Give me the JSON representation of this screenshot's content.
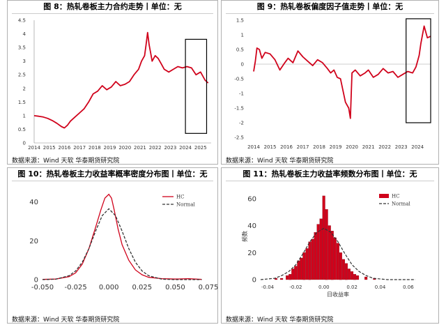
{
  "colors": {
    "series": "#d0021b",
    "normal": "#333333",
    "frame": "#000000"
  },
  "source": "数据来源：Wind 天软 华泰期货研究院",
  "chart_data": [
    {
      "type": "line",
      "title": "图 8：热轧卷板主力合约走势丨单位：无",
      "x_ticks": [
        "2014",
        "2015",
        "2016",
        "2017",
        "2018",
        "2019",
        "2020",
        "2021",
        "2022",
        "2023",
        "2024",
        "2025"
      ],
      "xlim": [
        2014,
        2025.7
      ],
      "ylim": [
        0,
        4.5
      ],
      "y_ticks": [
        0,
        0.5,
        1,
        1.5,
        2,
        2.5,
        3,
        3.5,
        4,
        4.5
      ],
      "x": [
        2014.0,
        2014.3,
        2014.6,
        2014.9,
        2015.2,
        2015.5,
        2015.8,
        2016.0,
        2016.2,
        2016.4,
        2016.7,
        2017.0,
        2017.3,
        2017.6,
        2017.9,
        2018.2,
        2018.5,
        2018.8,
        2019.1,
        2019.4,
        2019.7,
        2020.0,
        2020.3,
        2020.6,
        2020.9,
        2021.1,
        2021.3,
        2021.4,
        2021.5,
        2021.6,
        2021.7,
        2021.8,
        2022.0,
        2022.2,
        2022.4,
        2022.6,
        2022.9,
        2023.2,
        2023.5,
        2023.8,
        2024.1,
        2024.4,
        2024.7,
        2025.0,
        2025.3,
        2025.5
      ],
      "values": [
        1.0,
        0.98,
        0.95,
        0.9,
        0.82,
        0.72,
        0.6,
        0.55,
        0.65,
        0.8,
        0.95,
        1.1,
        1.25,
        1.5,
        1.8,
        1.9,
        2.1,
        1.95,
        2.05,
        2.25,
        2.1,
        2.15,
        2.25,
        2.5,
        2.7,
        3.0,
        3.2,
        3.6,
        4.05,
        3.6,
        3.3,
        3.0,
        3.2,
        3.1,
        2.9,
        2.7,
        2.6,
        2.7,
        2.8,
        2.75,
        2.8,
        2.75,
        2.5,
        2.6,
        2.3,
        2.2
      ],
      "box_x": [
        2024.0,
        2025.4
      ],
      "box_y": [
        0.35,
        3.8
      ]
    },
    {
      "type": "line",
      "title": "图 9：热轧卷板偏度因子值走势丨单位：无",
      "x_ticks": [
        "2014",
        "2015",
        "2016",
        "2017",
        "2018",
        "2019",
        "2020",
        "2021",
        "2022",
        "2023",
        "2024"
      ],
      "xlim": [
        2014,
        2024.8
      ],
      "ylim": [
        -2.5,
        1.5
      ],
      "y_ticks": [
        -2.5,
        -2,
        -1.5,
        -1,
        -0.5,
        0,
        0.5,
        1,
        1.5
      ],
      "x": [
        2014.0,
        2014.1,
        2014.2,
        2014.35,
        2014.5,
        2014.7,
        2015.0,
        2015.3,
        2015.6,
        2015.9,
        2016.1,
        2016.4,
        2016.7,
        2017.0,
        2017.3,
        2017.6,
        2017.9,
        2018.2,
        2018.5,
        2018.7,
        2018.9,
        2019.1,
        2019.3,
        2019.6,
        2019.8,
        2019.9,
        2020.0,
        2020.2,
        2020.5,
        2020.8,
        2021.0,
        2021.3,
        2021.6,
        2021.9,
        2022.2,
        2022.5,
        2022.8,
        2023.1,
        2023.4,
        2023.7,
        2023.9,
        2024.0,
        2024.1,
        2024.2,
        2024.4,
        2024.6,
        2024.8
      ],
      "values": [
        -0.25,
        0.1,
        0.55,
        0.5,
        0.2,
        0.4,
        0.35,
        0.15,
        -0.2,
        0.05,
        0.2,
        0.05,
        0.45,
        0.25,
        0.1,
        -0.05,
        0.15,
        0.05,
        -0.15,
        -0.3,
        -0.2,
        -0.45,
        -0.5,
        -1.3,
        -1.5,
        -1.85,
        -0.3,
        -0.2,
        -0.4,
        -0.3,
        -0.2,
        -0.45,
        -0.35,
        -0.15,
        -0.3,
        -0.25,
        -0.45,
        -0.35,
        -0.25,
        -0.3,
        -0.1,
        0.1,
        0.3,
        0.7,
        1.3,
        0.9,
        0.95
      ],
      "box_x": [
        2023.3,
        2024.8
      ],
      "box_y": [
        -2.0,
        1.55
      ]
    },
    {
      "type": "line",
      "title": "图 10：热轧卷板主力收益率概率密度分布图丨单位：无",
      "xlabel": "",
      "ylabel": "",
      "xlim": [
        -0.05,
        0.075
      ],
      "ylim": [
        0,
        46
      ],
      "x_ticks": [
        "-0.050",
        "-0.025",
        "0.000",
        "0.025",
        "0.050",
        "0.075"
      ],
      "x_tick_values": [
        -0.05,
        -0.025,
        0.0,
        0.025,
        0.05,
        0.075
      ],
      "y_ticks": [
        0,
        20,
        40
      ],
      "legend": [
        "HC",
        "Normal"
      ],
      "legend_position": "top-right",
      "series": [
        {
          "name": "HC",
          "x": [
            -0.05,
            -0.04,
            -0.03,
            -0.025,
            -0.02,
            -0.015,
            -0.01,
            -0.006,
            -0.003,
            0.0,
            0.002,
            0.004,
            0.007,
            0.01,
            0.015,
            0.02,
            0.025,
            0.03,
            0.04,
            0.05,
            0.06,
            0.07
          ],
          "values": [
            0.1,
            0.3,
            1.5,
            3.5,
            8,
            16,
            27,
            36,
            42,
            44,
            42,
            36,
            26,
            18,
            10,
            5,
            2.5,
            1.2,
            0.5,
            0.3,
            0.5,
            0.1
          ]
        },
        {
          "name": "Normal",
          "x": [
            -0.05,
            -0.04,
            -0.03,
            -0.025,
            -0.02,
            -0.015,
            -0.01,
            -0.005,
            0.0,
            0.005,
            0.01,
            0.015,
            0.02,
            0.025,
            0.03,
            0.04,
            0.05,
            0.06,
            0.07
          ],
          "values": [
            0,
            0.2,
            2,
            4.5,
            9,
            16,
            25,
            33,
            36.5,
            33,
            25,
            16,
            9,
            4.5,
            2,
            0.2,
            0,
            0,
            0
          ]
        }
      ]
    },
    {
      "type": "bar",
      "title": "图 11：热轧卷板主力收益率频数分布图丨单位：无",
      "xlabel": "日收益率",
      "ylabel": "频数",
      "xlim": [
        -0.045,
        0.065
      ],
      "ylim": [
        0,
        64
      ],
      "x_ticks": [
        "-0.04",
        "-0.02",
        "0.00",
        "0.02",
        "0.04",
        "0.06"
      ],
      "x_tick_values": [
        -0.04,
        -0.02,
        0.0,
        0.02,
        0.04,
        0.06
      ],
      "y_ticks": [
        0,
        20,
        40,
        60
      ],
      "legend": [
        "HC",
        "Normal"
      ],
      "legend_position": "top-right",
      "bin_width": 0.002,
      "bin_x": [
        -0.034,
        -0.03,
        -0.026,
        -0.024,
        -0.022,
        -0.02,
        -0.018,
        -0.016,
        -0.014,
        -0.012,
        -0.01,
        -0.008,
        -0.006,
        -0.004,
        -0.002,
        0.0,
        0.002,
        0.004,
        0.006,
        0.008,
        0.01,
        0.012,
        0.014,
        0.016,
        0.018,
        0.02,
        0.022,
        0.024,
        0.03,
        0.036
      ],
      "values": [
        1,
        1,
        3,
        4,
        8,
        10,
        14,
        16,
        20,
        23,
        28,
        30,
        35,
        41,
        45,
        62,
        52,
        40,
        36,
        31,
        27,
        20,
        15,
        12,
        8,
        6,
        4,
        3,
        2,
        1
      ],
      "normal_x": [
        -0.045,
        -0.035,
        -0.03,
        -0.025,
        -0.02,
        -0.015,
        -0.01,
        -0.005,
        0.0,
        0.005,
        0.01,
        0.015,
        0.02,
        0.025,
        0.03,
        0.035,
        0.045,
        0.065
      ],
      "normal_values": [
        0,
        1,
        3,
        6,
        11,
        19,
        28,
        35,
        38,
        35,
        28,
        19,
        11,
        6,
        3,
        1,
        0,
        0
      ]
    }
  ]
}
